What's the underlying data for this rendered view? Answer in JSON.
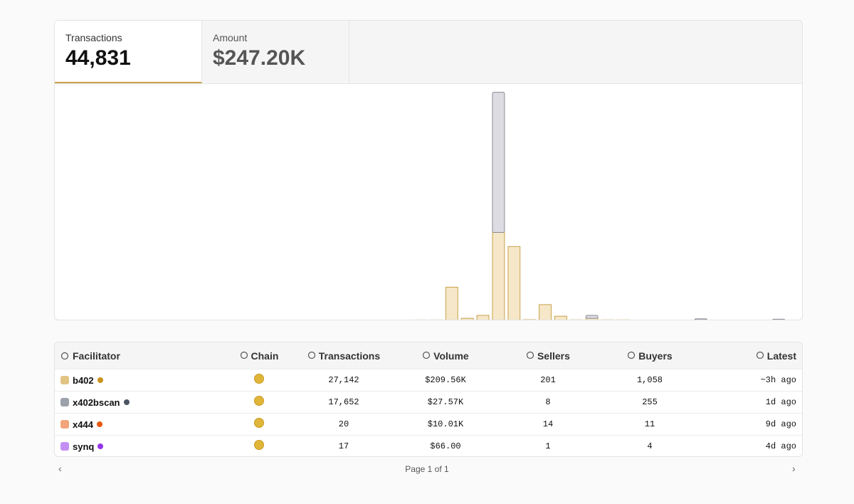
{
  "tabs": [
    {
      "label": "Transactions",
      "value": "44,831"
    },
    {
      "label": "Amount",
      "value": "$247.20K"
    }
  ],
  "chart_data": {
    "type": "stacked-bar",
    "categories": [
      null,
      null,
      null,
      null,
      null,
      null,
      null,
      null,
      null,
      null,
      null,
      null,
      null,
      null,
      null,
      null,
      null,
      null,
      null,
      null,
      null,
      null,
      null,
      null,
      null,
      null,
      null,
      null,
      null,
      null,
      null,
      null,
      null,
      null,
      null,
      null,
      null,
      null,
      null,
      null,
      null,
      null,
      null,
      null,
      null,
      null,
      null,
      null
    ],
    "series": [
      {
        "name": "b402",
        "color": "#f5e7c8",
        "stroke": "#c9a24a",
        "values": [
          0,
          0,
          0,
          0,
          0,
          0,
          0,
          0,
          0,
          0,
          0,
          0,
          0,
          0,
          0,
          0,
          0,
          0,
          0,
          0,
          0,
          0,
          0,
          50,
          50,
          4000,
          250,
          600,
          10600,
          8900,
          80,
          1900,
          500,
          60,
          250,
          60,
          60,
          40,
          0,
          40,
          40,
          80,
          40,
          40,
          40,
          40,
          40,
          40
        ]
      },
      {
        "name": "x402bscan",
        "color": "#dcdce2",
        "stroke": "#8a8a95",
        "values": [
          0,
          0,
          0,
          0,
          0,
          0,
          0,
          0,
          0,
          0,
          0,
          0,
          0,
          0,
          0,
          0,
          0,
          0,
          0,
          0,
          0,
          0,
          0,
          0,
          0,
          0,
          0,
          0,
          16900,
          0,
          0,
          0,
          0,
          0,
          350,
          0,
          0,
          0,
          0,
          0,
          0,
          100,
          0,
          0,
          0,
          0,
          100,
          0
        ]
      }
    ],
    "ylim": [
      0,
      28500
    ]
  },
  "table": {
    "columns": [
      "Facilitator",
      "Chain",
      "Transactions",
      "Volume",
      "Sellers",
      "Buyers",
      "Latest"
    ],
    "rows": [
      {
        "name": "b402",
        "dot": "#c9921e",
        "cells": [
          "27,142",
          "$209.56K",
          "201",
          "1,058",
          "~3h ago"
        ]
      },
      {
        "name": "x402bscan",
        "dot": "#4b5563",
        "cells": [
          "17,652",
          "$27.57K",
          "8",
          "255",
          "1d ago"
        ]
      },
      {
        "name": "x444",
        "dot": "#e8590c",
        "cells": [
          "20",
          "$10.01K",
          "14",
          "11",
          "9d ago"
        ]
      },
      {
        "name": "synq",
        "dot": "#9333ea",
        "cells": [
          "17",
          "$66.00",
          "1",
          "4",
          "4d ago"
        ]
      }
    ]
  },
  "pagination": "Page 1 of 1"
}
